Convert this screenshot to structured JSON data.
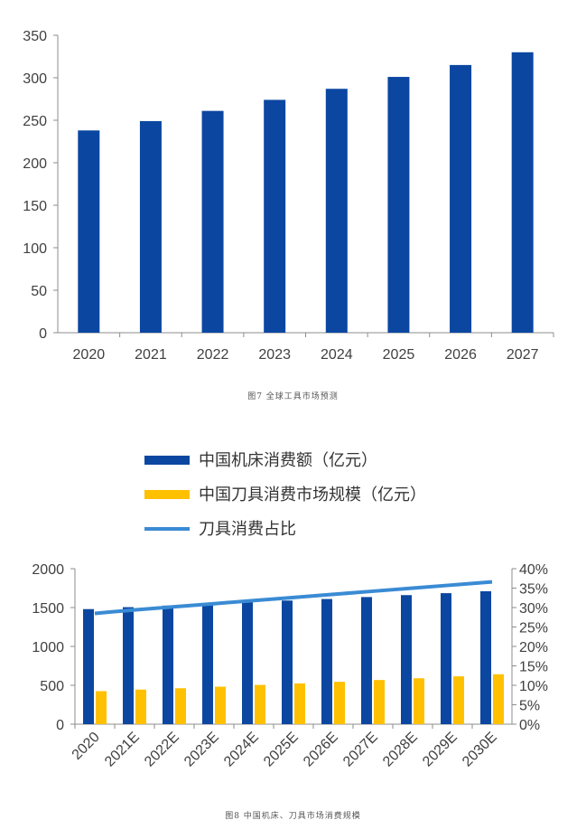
{
  "chart_data": [
    {
      "type": "bar",
      "caption": "图7 全球工具市场预测",
      "categories": [
        "2020",
        "2021",
        "2022",
        "2023",
        "2024",
        "2025",
        "2026",
        "2027"
      ],
      "values": [
        238,
        249,
        261,
        274,
        287,
        301,
        315,
        330
      ],
      "ylim": [
        0,
        350
      ],
      "yticks": [
        "0",
        "50",
        "100",
        "150",
        "200",
        "250",
        "300",
        "350"
      ],
      "grid": false,
      "colors": {
        "bar": "#0B47A1"
      }
    },
    {
      "type": "bar",
      "caption": "图8 中国机床、刀具市场消费规模",
      "categories": [
        "2020",
        "2021E",
        "2022E",
        "2023E",
        "2024E",
        "2025E",
        "2026E",
        "2027E",
        "2028E",
        "2029E",
        "2030E"
      ],
      "series": [
        {
          "name": "中国机床消费额（亿元）",
          "kind": "bar",
          "axis": "left",
          "color": "#0B47A1",
          "values": [
            1480,
            1505,
            1525,
            1550,
            1575,
            1590,
            1610,
            1635,
            1660,
            1685,
            1710
          ]
        },
        {
          "name": "中国刀具消费市场规模（亿元）",
          "kind": "bar",
          "axis": "left",
          "color": "#FFC000",
          "values": [
            425,
            445,
            462,
            482,
            505,
            525,
            545,
            568,
            590,
            615,
            642
          ]
        },
        {
          "name": "刀具消费占比",
          "kind": "line",
          "axis": "right",
          "color": "#3A8BD4",
          "values": [
            0.285,
            0.294,
            0.302,
            0.31,
            0.318,
            0.326,
            0.334,
            0.342,
            0.35,
            0.358,
            0.366
          ]
        }
      ],
      "ylim_left": [
        0,
        2000
      ],
      "ylim_right": [
        0,
        0.4
      ],
      "yticks_left": [
        "0",
        "500",
        "1000",
        "1500",
        "2000"
      ],
      "yticks_right": [
        "0%",
        "5%",
        "10%",
        "15%",
        "20%",
        "25%",
        "30%",
        "35%",
        "40%"
      ],
      "legend_position": "top-left",
      "grid": false
    }
  ]
}
